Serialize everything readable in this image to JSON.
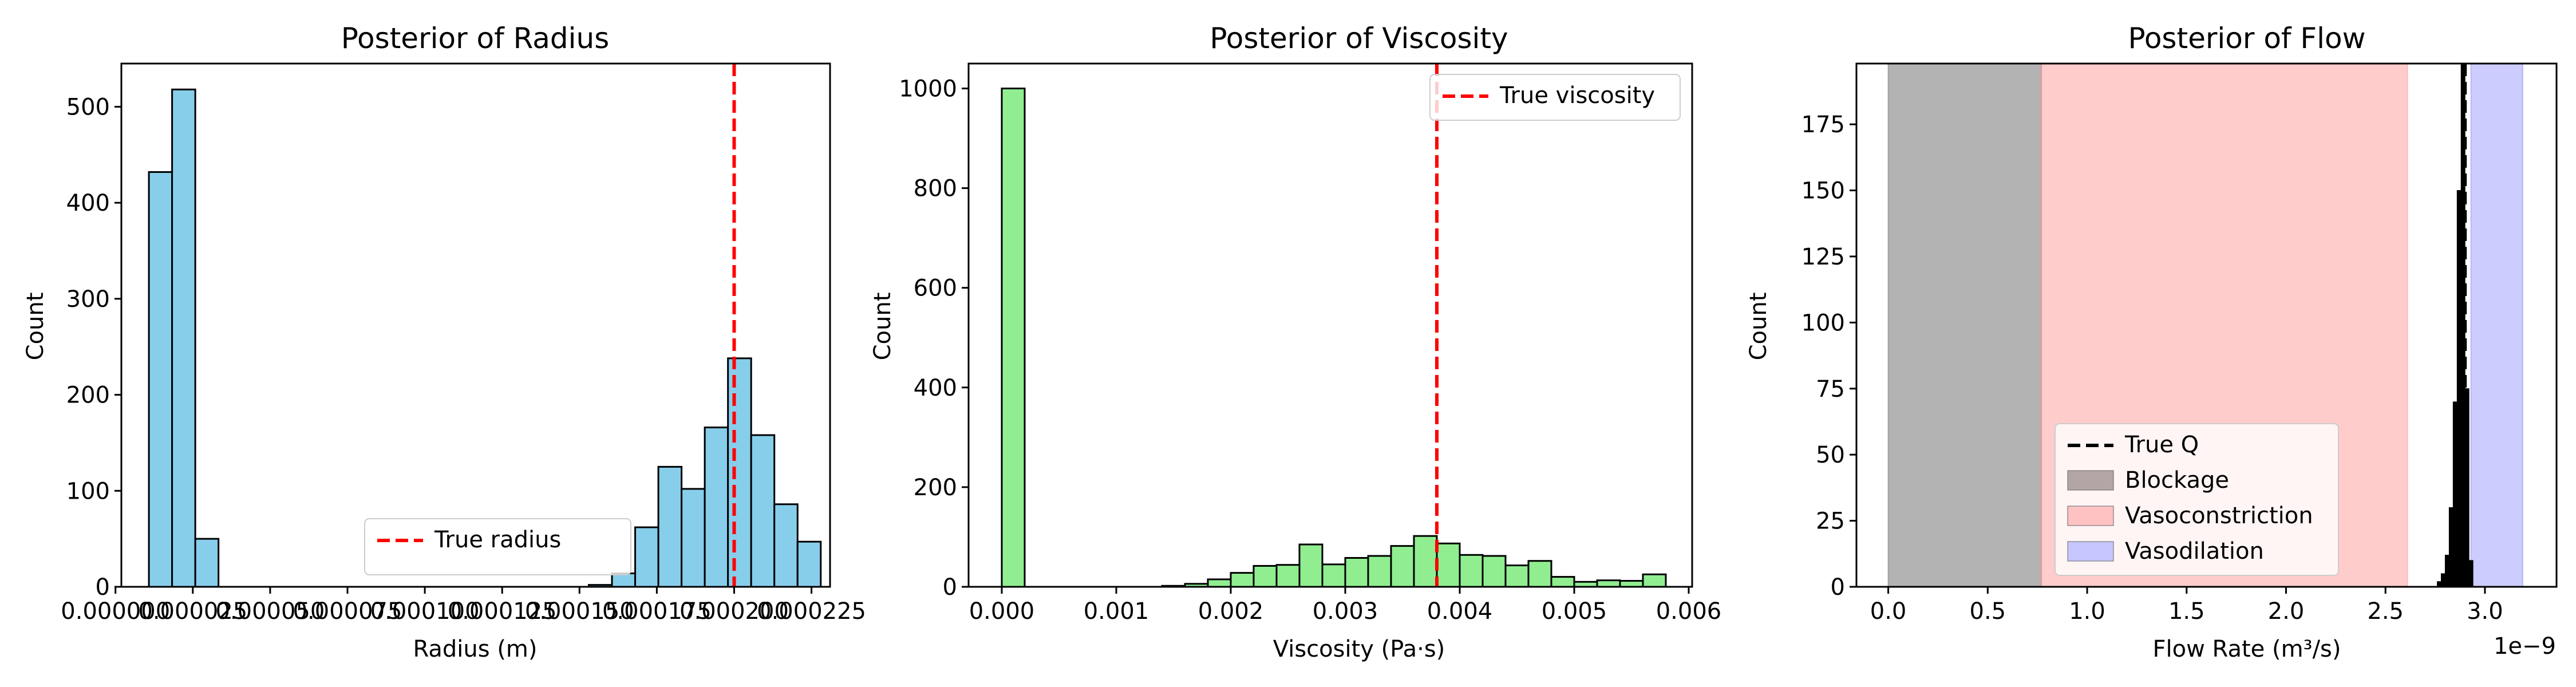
{
  "chart_data": [
    {
      "type": "histogram",
      "title": "Posterior of Radius",
      "xlabel": "Radius (m)",
      "ylabel": "Count",
      "xlim": [
        1.9e-06,
        0.000231
      ],
      "ylim": [
        0,
        545
      ],
      "xticks": [
        0.0,
        2.5e-05,
        5e-05,
        7.5e-05,
        0.0001,
        0.000125,
        0.00015,
        0.000175,
        0.0002,
        0.000225
      ],
      "xtick_labels": [
        "0.000000",
        "0.000025",
        "0.000050",
        "0.000075",
        "0.000100",
        "0.000125",
        "0.000150",
        "0.000175",
        "0.000200",
        "0.000225"
      ],
      "yticks": [
        0,
        100,
        200,
        300,
        400,
        500
      ],
      "ytick_labels": [
        "0",
        "100",
        "200",
        "300",
        "400",
        "500"
      ],
      "bar_color": "#87ceeb",
      "bins": [
        {
          "x0": 1.08e-05,
          "x1": 1.83e-05,
          "count": 432
        },
        {
          "x0": 1.83e-05,
          "x1": 2.58e-05,
          "count": 518
        },
        {
          "x0": 2.58e-05,
          "x1": 3.33e-05,
          "count": 50
        },
        {
          "x0": 0.000153,
          "x1": 0.0001605,
          "count": 2
        },
        {
          "x0": 0.0001605,
          "x1": 0.000168,
          "count": 14
        },
        {
          "x0": 0.000168,
          "x1": 0.0001755,
          "count": 62
        },
        {
          "x0": 0.0001755,
          "x1": 0.000183,
          "count": 125
        },
        {
          "x0": 0.000183,
          "x1": 0.0001905,
          "count": 102
        },
        {
          "x0": 0.0001905,
          "x1": 0.000198,
          "count": 166
        },
        {
          "x0": 0.000198,
          "x1": 0.0002055,
          "count": 238
        },
        {
          "x0": 0.0002055,
          "x1": 0.000213,
          "count": 158
        },
        {
          "x0": 0.000213,
          "x1": 0.0002205,
          "count": 86
        },
        {
          "x0": 0.0002205,
          "x1": 0.000228,
          "count": 47
        }
      ],
      "reference_lines": [
        {
          "x": 0.0002,
          "color": "#ff0000",
          "style": "dashed",
          "label": "True radius"
        }
      ],
      "legend": {
        "placement": "lower-right",
        "entries": [
          {
            "type": "line",
            "color": "#ff0000",
            "style": "dashed",
            "label": "True radius"
          }
        ]
      }
    },
    {
      "type": "histogram",
      "title": "Posterior of Viscosity",
      "xlabel": "Viscosity (Pa·s)",
      "ylabel": "Count",
      "xlim": [
        -0.00029,
        0.00603
      ],
      "ylim": [
        0,
        1050
      ],
      "xticks": [
        0.0,
        0.001,
        0.002,
        0.003,
        0.004,
        0.005,
        0.006
      ],
      "xtick_labels": [
        "0.000",
        "0.001",
        "0.002",
        "0.003",
        "0.004",
        "0.005",
        "0.006"
      ],
      "yticks": [
        0,
        200,
        400,
        600,
        800,
        1000
      ],
      "ytick_labels": [
        "0",
        "200",
        "400",
        "600",
        "800",
        "1000"
      ],
      "bar_color": "#90ee90",
      "bins": [
        {
          "x0": 0.0,
          "x1": 0.0002,
          "count": 1000
        },
        {
          "x0": 0.0014,
          "x1": 0.0016,
          "count": 2
        },
        {
          "x0": 0.0016,
          "x1": 0.0018,
          "count": 6
        },
        {
          "x0": 0.0018,
          "x1": 0.002,
          "count": 15
        },
        {
          "x0": 0.002,
          "x1": 0.0022,
          "count": 28
        },
        {
          "x0": 0.0022,
          "x1": 0.0024,
          "count": 42
        },
        {
          "x0": 0.0024,
          "x1": 0.0026,
          "count": 44
        },
        {
          "x0": 0.0026,
          "x1": 0.0028,
          "count": 85
        },
        {
          "x0": 0.0028,
          "x1": 0.003,
          "count": 45
        },
        {
          "x0": 0.003,
          "x1": 0.0032,
          "count": 58
        },
        {
          "x0": 0.0032,
          "x1": 0.0034,
          "count": 62
        },
        {
          "x0": 0.0034,
          "x1": 0.0036,
          "count": 82
        },
        {
          "x0": 0.0036,
          "x1": 0.0038,
          "count": 102
        },
        {
          "x0": 0.0038,
          "x1": 0.004,
          "count": 87
        },
        {
          "x0": 0.004,
          "x1": 0.0042,
          "count": 64
        },
        {
          "x0": 0.0042,
          "x1": 0.0044,
          "count": 62
        },
        {
          "x0": 0.0044,
          "x1": 0.0046,
          "count": 43
        },
        {
          "x0": 0.0046,
          "x1": 0.0048,
          "count": 52
        },
        {
          "x0": 0.0048,
          "x1": 0.005,
          "count": 20
        },
        {
          "x0": 0.005,
          "x1": 0.0052,
          "count": 10
        },
        {
          "x0": 0.0052,
          "x1": 0.0054,
          "count": 13
        },
        {
          "x0": 0.0054,
          "x1": 0.0056,
          "count": 12
        },
        {
          "x0": 0.0056,
          "x1": 0.0058,
          "count": 25
        }
      ],
      "reference_lines": [
        {
          "x": 0.0038,
          "color": "#ff0000",
          "style": "dashed",
          "label": "True viscosity"
        }
      ],
      "legend": {
        "placement": "upper-right",
        "entries": [
          {
            "type": "line",
            "color": "#ff0000",
            "style": "dashed",
            "label": "True viscosity"
          }
        ]
      }
    },
    {
      "type": "histogram",
      "title": "Posterior of Flow",
      "xlabel": "Flow Rate (m³/s)",
      "ylabel": "Count",
      "offset_text": "1e−9",
      "xlim": [
        -0.16,
        3.36
      ],
      "ylim": [
        0,
        198
      ],
      "xticks": [
        0.0,
        0.5,
        1.0,
        1.5,
        2.0,
        2.5,
        3.0
      ],
      "xtick_labels": [
        "0.0",
        "0.5",
        "1.0",
        "1.5",
        "2.0",
        "2.5",
        "3.0"
      ],
      "yticks": [
        0,
        25,
        50,
        75,
        100,
        125,
        150,
        175
      ],
      "ytick_labels": [
        "0",
        "25",
        "50",
        "75",
        "100",
        "125",
        "150",
        "175"
      ],
      "bar_color": "#000000",
      "spans": [
        {
          "x0": 0.0,
          "x1": 0.77,
          "color": "#808080",
          "opacity": 0.6,
          "label": "Blockage"
        },
        {
          "x0": 0.77,
          "x1": 2.61,
          "color": "#ff9999",
          "opacity": 0.5,
          "label": "Vasoconstriction"
        },
        {
          "x0": 2.93,
          "x1": 3.19,
          "color": "#9999ff",
          "opacity": 0.5,
          "label": "Vasodilation"
        }
      ],
      "bins": [
        {
          "x0": 2.76,
          "x1": 2.78,
          "count": 2
        },
        {
          "x0": 2.78,
          "x1": 2.8,
          "count": 5
        },
        {
          "x0": 2.8,
          "x1": 2.82,
          "count": 12
        },
        {
          "x0": 2.82,
          "x1": 2.84,
          "count": 30
        },
        {
          "x0": 2.84,
          "x1": 2.86,
          "count": 70
        },
        {
          "x0": 2.86,
          "x1": 2.88,
          "count": 150
        },
        {
          "x0": 2.88,
          "x1": 2.9,
          "count": 198
        },
        {
          "x0": 2.9,
          "x1": 2.92,
          "count": 75
        },
        {
          "x0": 2.92,
          "x1": 2.94,
          "count": 10
        }
      ],
      "reference_lines": [
        {
          "x": 2.9,
          "color": "#000000",
          "style": "dashed",
          "label": "True Q"
        }
      ],
      "legend": {
        "placement": "lower-left-center",
        "entries": [
          {
            "type": "line",
            "color": "#000000",
            "style": "dashed",
            "label": "True Q"
          },
          {
            "type": "patch",
            "color": "#b3a5a5",
            "label": "Blockage"
          },
          {
            "type": "patch",
            "color": "#ffc2c2",
            "label": "Vasoconstriction"
          },
          {
            "type": "patch",
            "color": "#c6c6ff",
            "label": "Vasodilation"
          }
        ]
      }
    }
  ]
}
